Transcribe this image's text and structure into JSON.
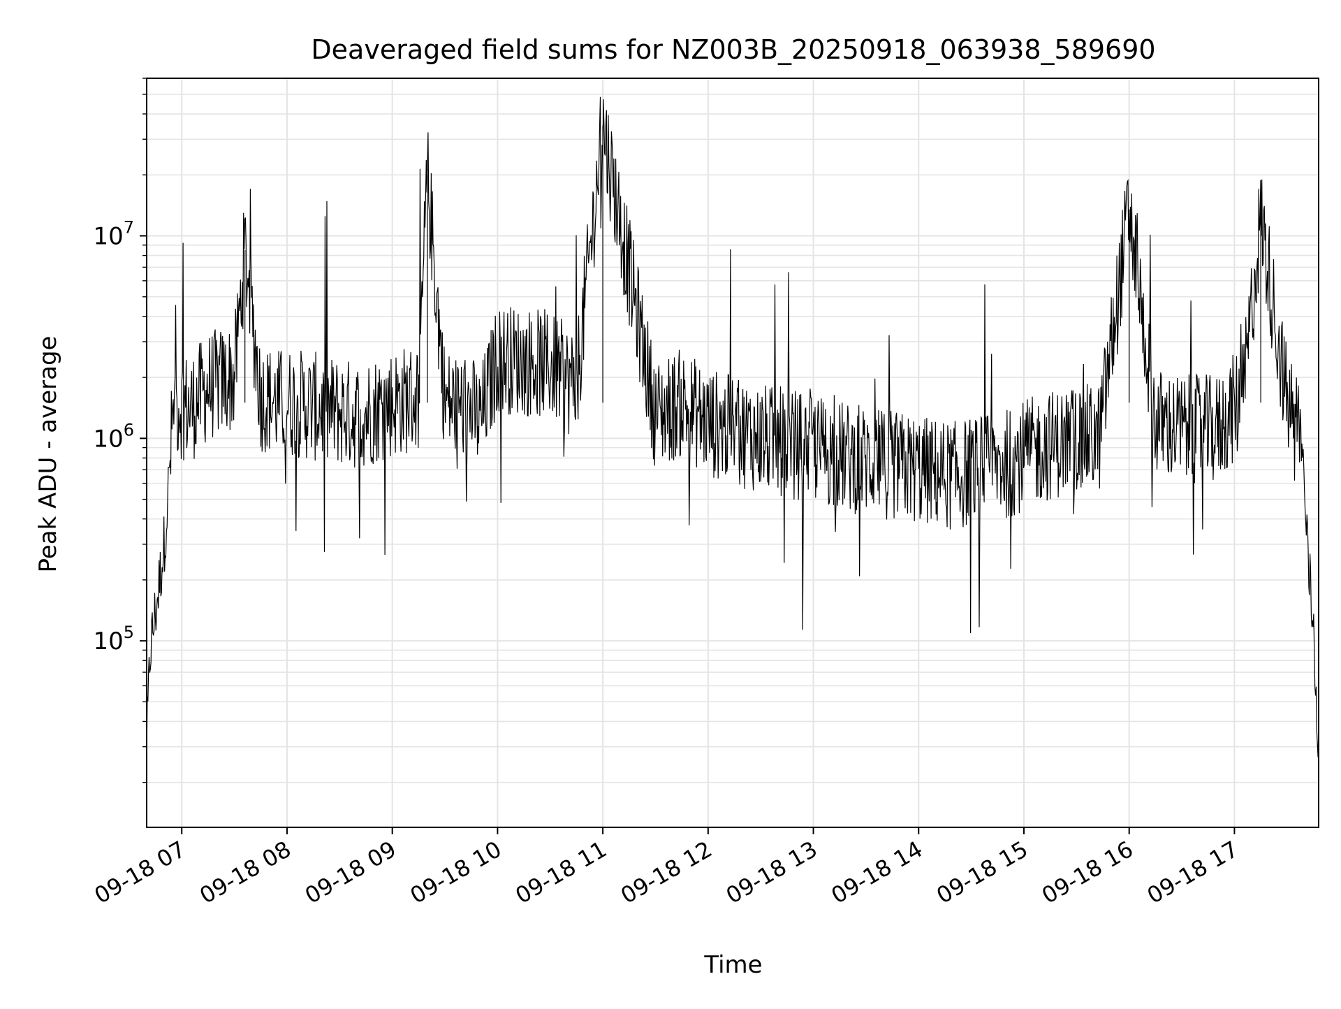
{
  "chart_data": {
    "type": "line",
    "title": "Deaveraged field sums for NZ003B_20250918_063938_589690",
    "xlabel": "Time",
    "ylabel": "Peak ADU - average",
    "yscale": "log",
    "ylim": [
      12000,
      60000000
    ],
    "xlim": [
      "2025-09-18 06:40",
      "2025-09-18 17:48"
    ],
    "x_ticks": [
      "09-18 07",
      "09-18 08",
      "09-18 09",
      "09-18 10",
      "09-18 11",
      "09-18 12",
      "09-18 13",
      "09-18 14",
      "09-18 15",
      "09-18 16",
      "09-18 17"
    ],
    "y_ticks": [
      {
        "base": "10",
        "exp": "5",
        "value": 100000
      },
      {
        "base": "10",
        "exp": "6",
        "value": 1000000
      },
      {
        "base": "10",
        "exp": "7",
        "value": 10000000
      }
    ],
    "grid": true,
    "line_color": "#000000",
    "series": [
      {
        "x": [
          "2025-09-18 06:40",
          "2025-09-18 06:42",
          "2025-09-18 06:44",
          "2025-09-18 06:46",
          "2025-09-18 06:48",
          "2025-09-18 06:50",
          "2025-09-18 06:52",
          "2025-09-18 06:55",
          "2025-09-18 06:58",
          "2025-09-18 07:05",
          "2025-09-18 07:15",
          "2025-09-18 07:30",
          "2025-09-18 07:36",
          "2025-09-18 07:45",
          "2025-09-18 07:55",
          "2025-09-18 08:05",
          "2025-09-18 08:20",
          "2025-09-18 08:40",
          "2025-09-18 09:00",
          "2025-09-18 09:15",
          "2025-09-18 09:20",
          "2025-09-18 09:30",
          "2025-09-18 09:45",
          "2025-09-18 09:50",
          "2025-09-18 10:00",
          "2025-09-18 10:30",
          "2025-09-18 10:45",
          "2025-09-18 11:00",
          "2025-09-18 11:30",
          "2025-09-18 11:45",
          "2025-09-18 12:00",
          "2025-09-18 12:30",
          "2025-09-18 13:00",
          "2025-09-18 13:20",
          "2025-09-18 13:40",
          "2025-09-18 14:00",
          "2025-09-18 14:20",
          "2025-09-18 14:35",
          "2025-09-18 14:50",
          "2025-09-18 15:10",
          "2025-09-18 15:30",
          "2025-09-18 15:43",
          "2025-09-18 16:00",
          "2025-09-18 16:15",
          "2025-09-18 16:30",
          "2025-09-18 16:50",
          "2025-09-18 17:05",
          "2025-09-18 17:15",
          "2025-09-18 17:30",
          "2025-09-18 17:38",
          "2025-09-18 17:42",
          "2025-09-18 17:45",
          "2025-09-18 17:48"
        ],
        "y": [
          30000,
          90000,
          120000,
          160000,
          220000,
          300000,
          500000,
          1300000,
          1500000,
          1400000,
          1800000,
          2000000,
          8500000,
          1600000,
          1500000,
          1500000,
          1400000,
          1300000,
          1500000,
          1600000,
          20000000,
          1500000,
          1400000,
          1200000,
          2500000,
          2300000,
          1800000,
          35000000,
          1300000,
          1500000,
          1200000,
          1000000,
          900000,
          800000,
          750000,
          700000,
          650000,
          700000,
          750000,
          900000,
          1000000,
          1000000,
          13500000,
          1200000,
          1100000,
          1100000,
          1600000,
          12500000,
          1500000,
          1100000,
          250000,
          120000,
          30000
        ]
      }
    ]
  }
}
